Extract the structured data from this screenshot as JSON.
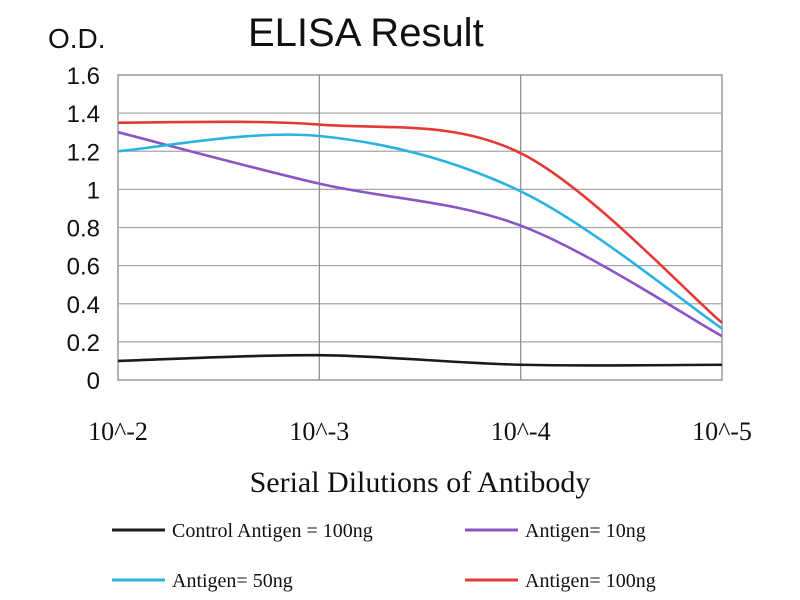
{
  "chart_data": {
    "type": "line",
    "title": "ELISA Result",
    "ylabel": "O.D.",
    "xlabel": "Serial Dilutions of Antibody",
    "categories": [
      "10^-2",
      "10^-3",
      "10^-4",
      "10^-5"
    ],
    "ylim": [
      0,
      1.6
    ],
    "yticks": [
      "0",
      "0.2",
      "0.4",
      "0.6",
      "0.8",
      "1",
      "1.2",
      "1.4",
      "1.6"
    ],
    "grid": true,
    "legend_position": "bottom",
    "series": [
      {
        "name": "Control Antigen = 100ng",
        "color": "#1a1a1a",
        "values": [
          0.1,
          0.13,
          0.08,
          0.08
        ]
      },
      {
        "name": "Antigen= 10ng",
        "color": "#8a55c4",
        "values": [
          1.3,
          1.03,
          0.81,
          0.23
        ]
      },
      {
        "name": "Antigen= 50ng",
        "color": "#2ab3e0",
        "values": [
          1.2,
          1.28,
          0.99,
          0.27
        ]
      },
      {
        "name": "Antigen= 100ng",
        "color": "#e53935",
        "values": [
          1.35,
          1.34,
          1.19,
          0.3
        ]
      }
    ]
  }
}
